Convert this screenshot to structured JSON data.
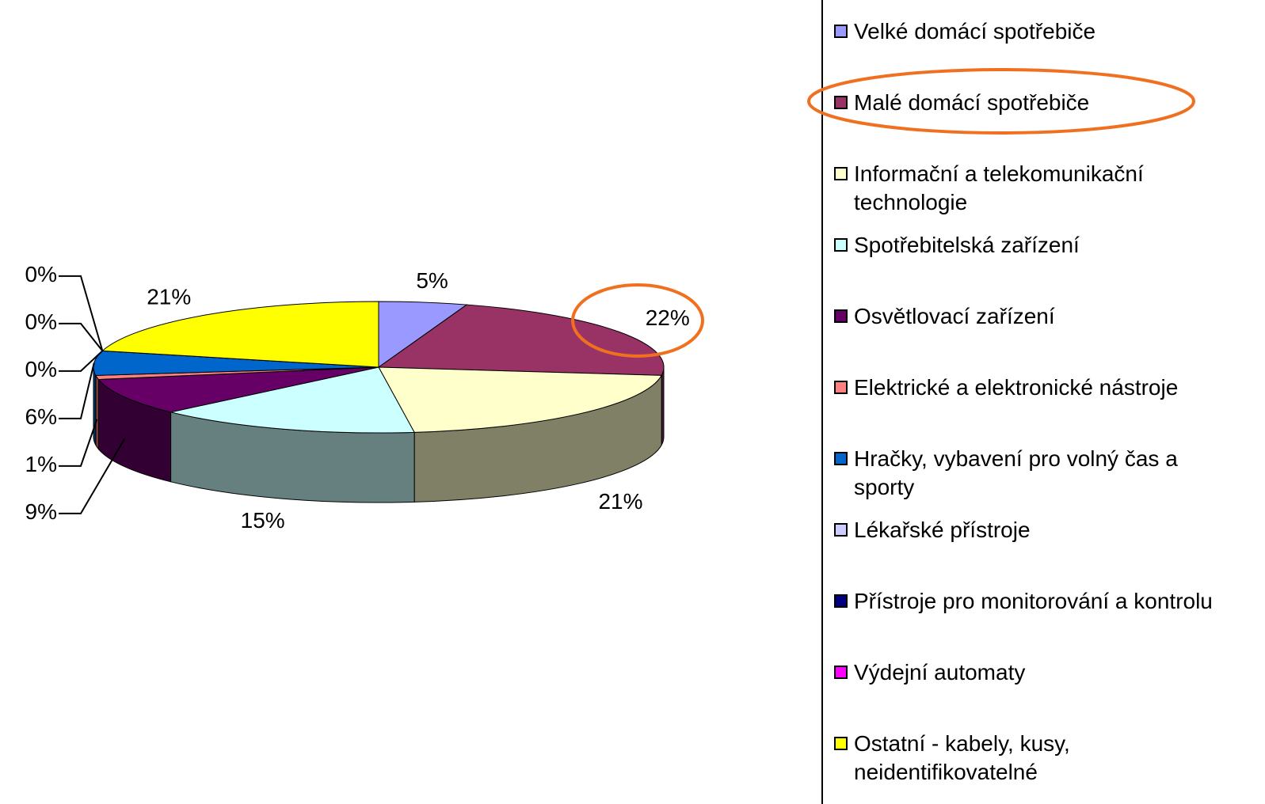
{
  "chart_data": {
    "type": "pie3d",
    "categories": [
      "Velké domácí spotřebiče",
      "Malé domácí spotřebiče",
      "Informační a telekomunikační technologie",
      "Spotřebitelská zařízení",
      "Osvětlovací zařízení",
      "Elektrické a elektronické nástroje",
      "Hračky, vybavení pro volný čas a sporty",
      "Lékařské přístroje",
      "Přístroje pro monitorování a kontrolu",
      "Výdejní automaty",
      "Ostatní - kabely, kusy, neidentifikovatelné"
    ],
    "values": [
      5,
      22,
      21,
      15,
      9,
      1,
      6,
      0,
      0,
      0,
      21
    ],
    "value_labels": [
      "5%",
      "22%",
      "21%",
      "15%",
      "9%",
      "1%",
      "6%",
      "0%",
      "0%",
      "0%",
      "21%"
    ],
    "colors": [
      "#9999ff",
      "#993366",
      "#ffffcc",
      "#ccffff",
      "#660066",
      "#ff8080",
      "#0066cc",
      "#ccccff",
      "#000080",
      "#ff00ff",
      "#ffff00"
    ],
    "legend": "right"
  }
}
